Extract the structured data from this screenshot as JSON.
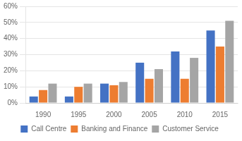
{
  "chart_data": {
    "type": "bar",
    "categories": [
      "1990",
      "1995",
      "2000",
      "2005",
      "2010",
      "2015"
    ],
    "series": [
      {
        "name": "Call Centre",
        "color": "#4472C4",
        "values": [
          4,
          4,
          12,
          25,
          32,
          45
        ]
      },
      {
        "name": "Banking and Finance",
        "color": "#ED7D31",
        "values": [
          8,
          10,
          11,
          15,
          15,
          35
        ]
      },
      {
        "name": "Customer Service",
        "color": "#A5A5A5",
        "values": [
          12,
          12,
          13,
          21,
          28,
          51
        ]
      }
    ],
    "ylim": [
      0,
      60
    ],
    "yticks": [
      {
        "value": 0,
        "label": "0%"
      },
      {
        "value": 10,
        "label": "10%"
      },
      {
        "value": 20,
        "label": "20%"
      },
      {
        "value": 30,
        "label": "30%"
      },
      {
        "value": 40,
        "label": "40%"
      },
      {
        "value": 50,
        "label": "50%"
      },
      {
        "value": 60,
        "label": "60%"
      }
    ],
    "grid": true,
    "legend": "bottom"
  }
}
